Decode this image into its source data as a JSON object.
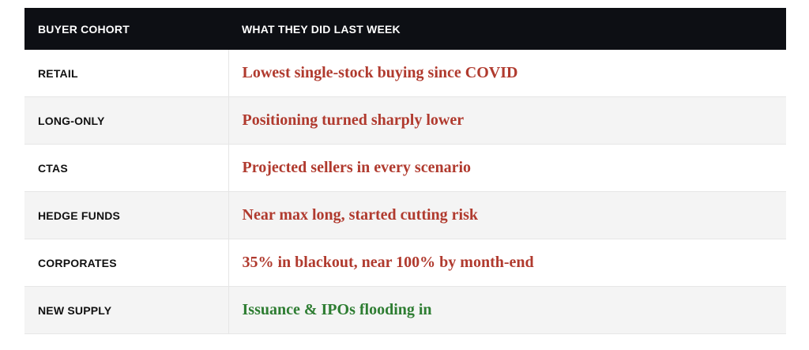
{
  "table": {
    "header": [
      "BUYER COHORT",
      "WHAT THEY DID LAST WEEK"
    ],
    "rows": [
      {
        "cohort": "RETAIL",
        "activity": "Lowest single-stock buying since COVID",
        "color": "#b03a2e"
      },
      {
        "cohort": "LONG-ONLY",
        "activity": "Positioning turned sharply lower",
        "color": "#b03a2e"
      },
      {
        "cohort": "CTAS",
        "activity": "Projected sellers in every scenario",
        "color": "#b03a2e"
      },
      {
        "cohort": "HEDGE FUNDS",
        "activity": "Near max long, started cutting risk",
        "color": "#b03a2e"
      },
      {
        "cohort": "CORPORATES",
        "activity": "35% in blackout, near 100% by month-end",
        "color": "#b03a2e"
      },
      {
        "cohort": "NEW SUPPLY",
        "activity": "Issuance & IPOs flooding in",
        "color": "#2e7d32"
      }
    ]
  }
}
